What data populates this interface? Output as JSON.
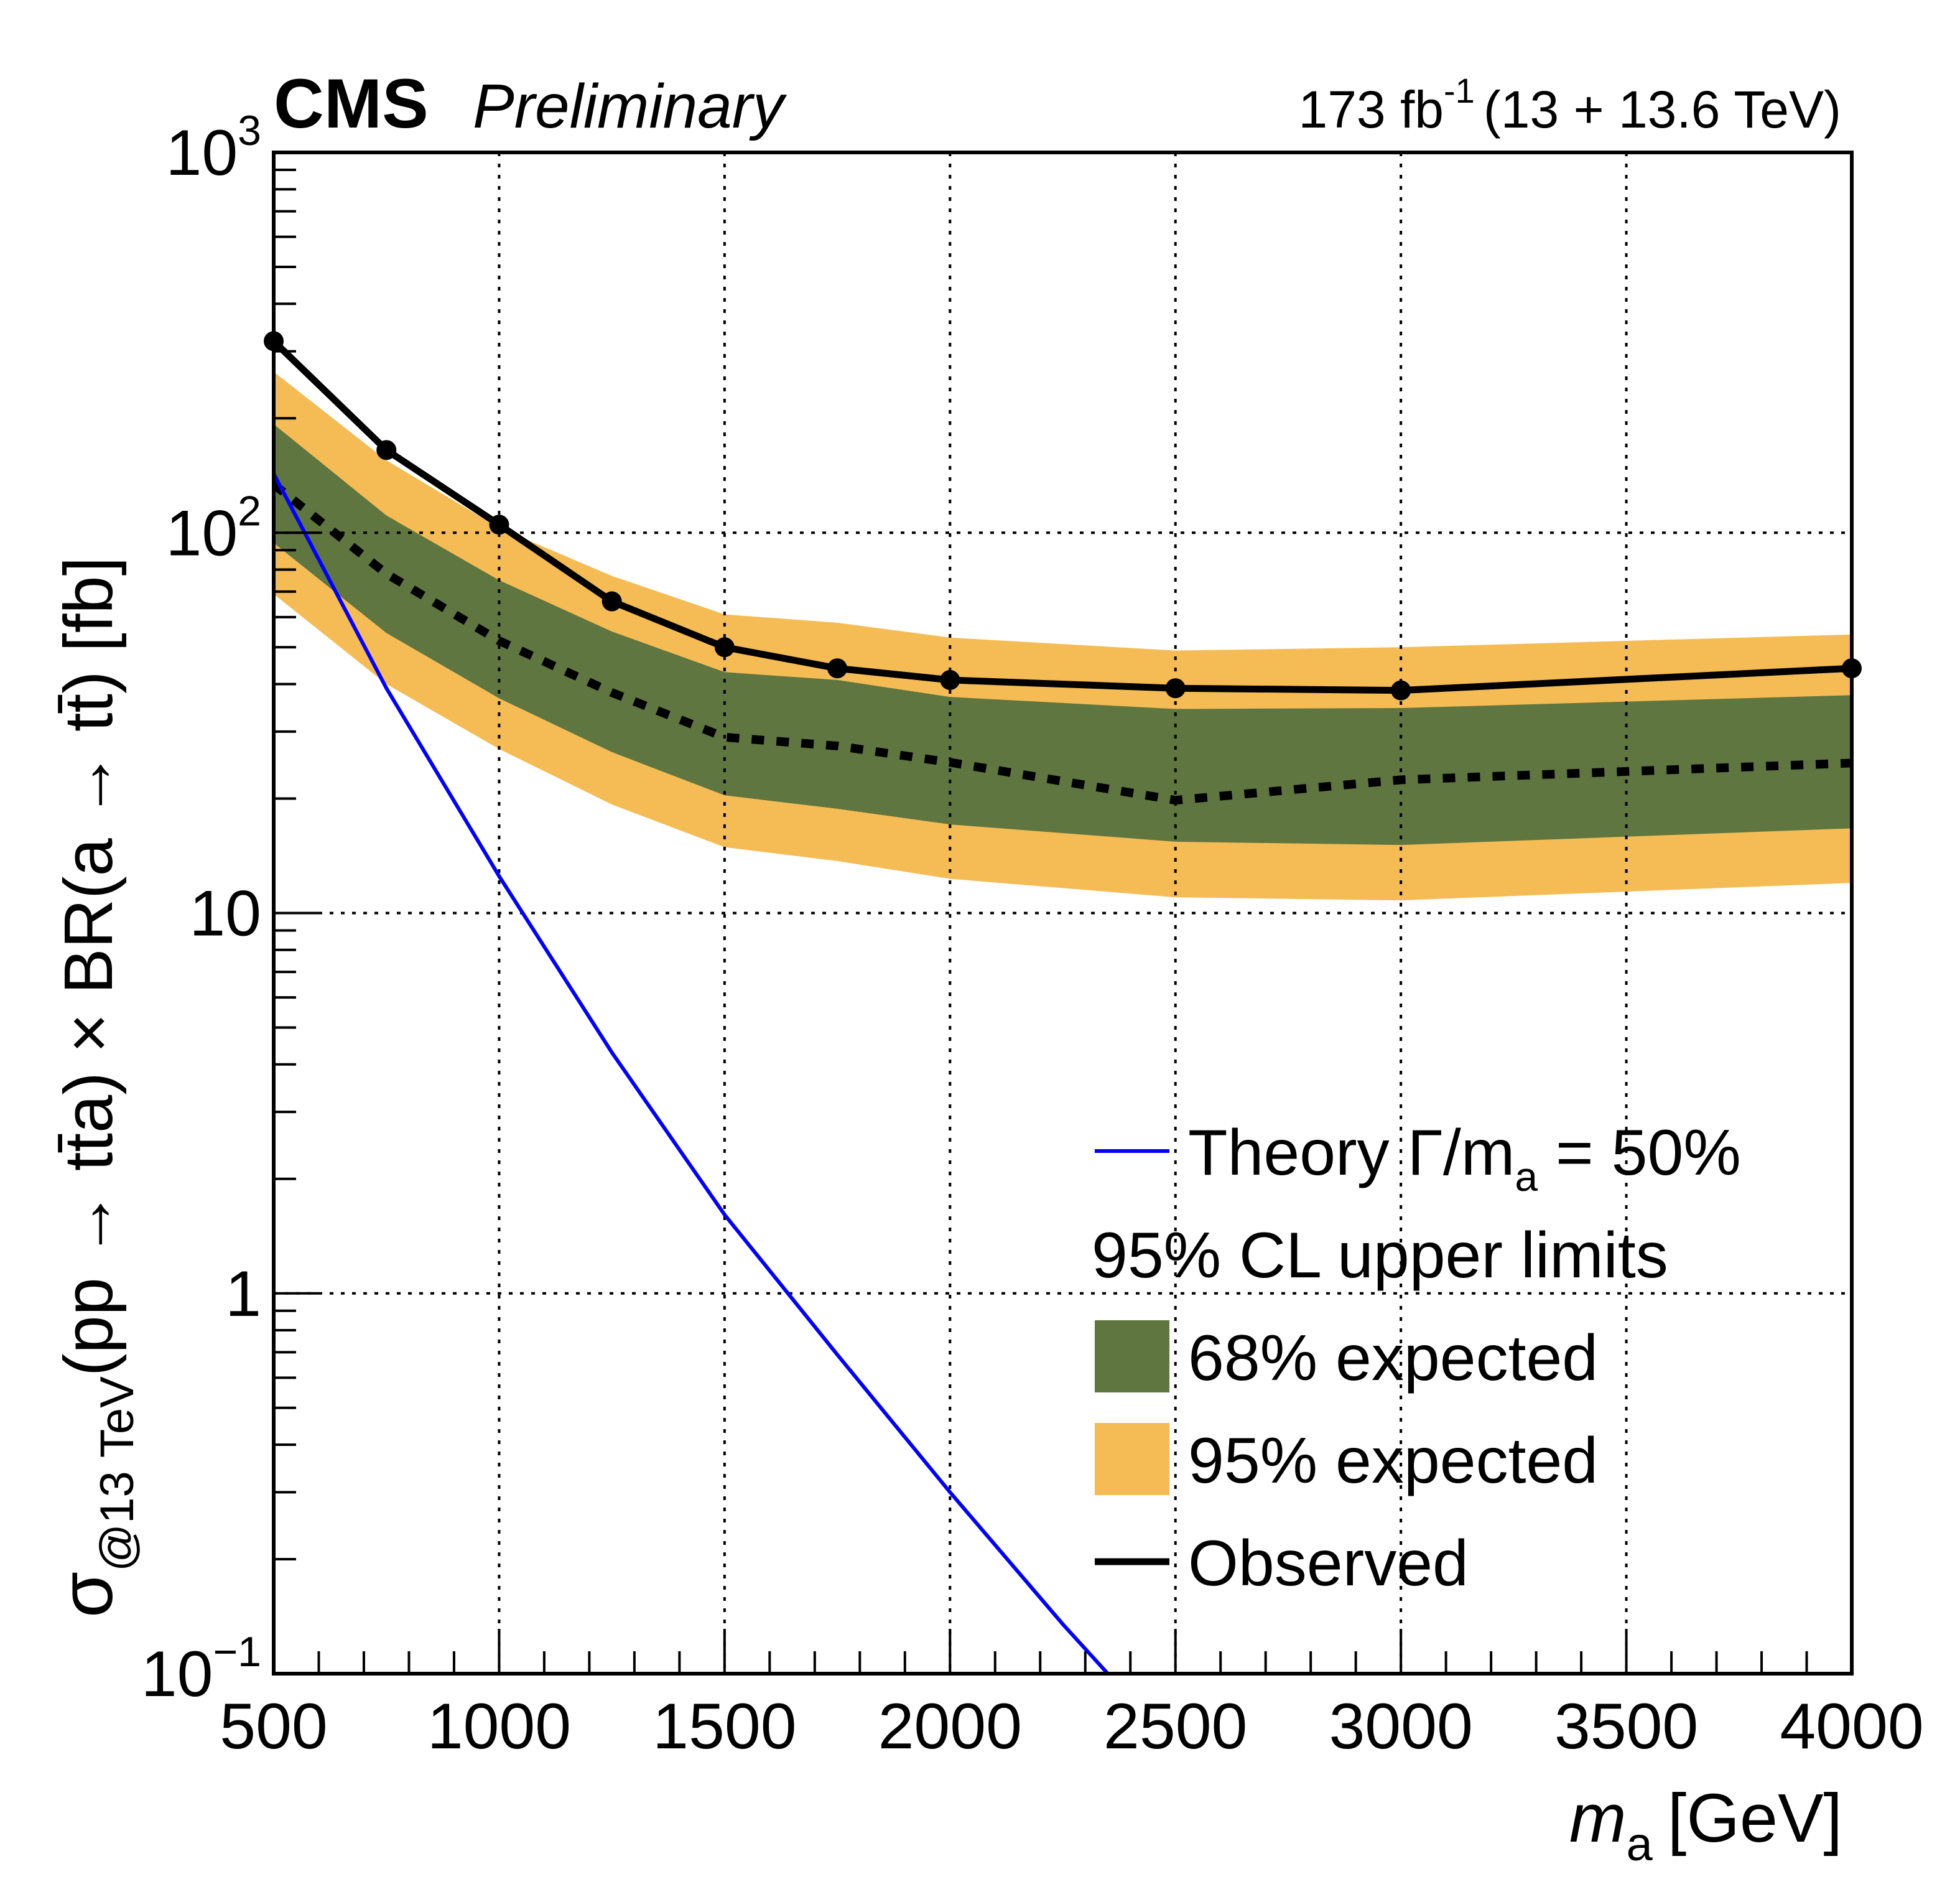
{
  "chart_data": {
    "type": "line",
    "title": "",
    "experiment_label": "CMS",
    "status_label": "Preliminary",
    "lumi_label": {
      "value": "173 fb",
      "exponent": "-1",
      "energy": "(13 + 13.6 TeV)"
    },
    "xlabel": {
      "main": "m",
      "subscript": "a",
      "unit": "[GeV]"
    },
    "ylabel": {
      "sigma": "σ",
      "subscript": "@13 TeV",
      "body": "(pp → tt̄a) × BR(a → tt̄) [fb]"
    },
    "x_scale": "linear",
    "y_scale": "log",
    "xlim": [
      500,
      4000
    ],
    "ylim": [
      0.1,
      1000
    ],
    "grid": true,
    "x_ticks": [
      500,
      1000,
      1500,
      2000,
      2500,
      3000,
      3500,
      4000
    ],
    "x_tick_labels": [
      "500",
      "1000",
      "1500",
      "2000",
      "2500",
      "3000",
      "3500",
      "4000"
    ],
    "y_ticks": [
      0.1,
      1,
      10,
      100,
      1000
    ],
    "y_tick_labels": [
      {
        "base": "10",
        "exp": "−1"
      },
      {
        "base": "1",
        "exp": ""
      },
      {
        "base": "10",
        "exp": ""
      },
      {
        "base": "10",
        "exp": "2"
      },
      {
        "base": "10",
        "exp": "3"
      }
    ],
    "x": [
      500,
      750,
      1000,
      1250,
      1500,
      1750,
      2000,
      2500,
      3000,
      4000
    ],
    "series": [
      {
        "name": "95% expected",
        "kind": "band",
        "color": "#F5BB54",
        "lower": [
          69,
          40,
          27,
          19.3,
          14.9,
          13.7,
          12.3,
          11.0,
          10.8,
          12.0
        ],
        "upper": [
          265,
          155,
          103,
          77,
          61,
          58,
          53,
          49,
          50,
          54
        ]
      },
      {
        "name": "68% expected",
        "kind": "band",
        "color": "#607641",
        "lower": [
          94,
          54.5,
          36.7,
          26.5,
          20.4,
          18.8,
          17.1,
          15.4,
          15.1,
          16.7
        ],
        "upper": [
          193,
          111,
          75,
          55,
          43,
          41,
          37,
          34.4,
          34.6,
          37.4
        ]
      },
      {
        "name": "Expected",
        "kind": "line",
        "style": "dotted",
        "color": "#000000",
        "values": [
          134,
          78,
          52,
          38,
          29,
          27.5,
          24.9,
          19.8,
          22.4,
          24.8
        ]
      },
      {
        "name": "Observed",
        "kind": "line",
        "style": "solid-markers",
        "color": "#000000",
        "values": [
          319,
          165,
          105,
          66,
          50,
          44,
          41,
          39,
          38.5,
          44
        ]
      },
      {
        "name": "Theory Γ/m_a = 50%",
        "kind": "line",
        "style": "solid",
        "color": "#0000FF",
        "x": [
          500,
          750,
          1000,
          1250,
          1500,
          1750,
          2000,
          2250,
          2350
        ],
        "values": [
          143,
          39,
          12.5,
          4.3,
          1.61,
          0.69,
          0.3,
          0.135,
          0.1
        ]
      }
    ],
    "legend": {
      "placement": "bottom-right",
      "entries": [
        {
          "symbol": "line",
          "color": "#0000FF",
          "label": "Theory Γ/m",
          "label_sub": "a",
          "label_tail": " = 50%"
        },
        {
          "symbol": "none",
          "label": "95% CL upper limits"
        },
        {
          "symbol": "box",
          "color": "#607641",
          "label": "68% expected"
        },
        {
          "symbol": "box",
          "color": "#F5BB54",
          "label": "95% expected"
        },
        {
          "symbol": "line",
          "color": "#000000",
          "label": "Observed"
        }
      ]
    }
  }
}
